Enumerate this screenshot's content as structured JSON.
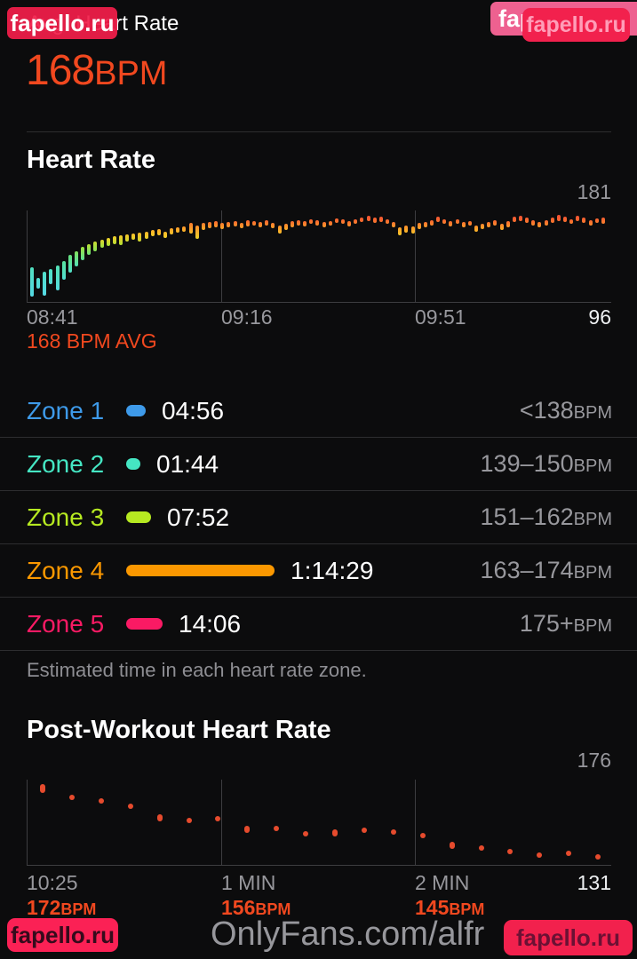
{
  "accent_color": "#f1481f",
  "header": {
    "title": "Avg. Heart Rate",
    "value": "168",
    "unit": "BPM"
  },
  "heart_rate": {
    "section_title": "Heart Rate",
    "y_max": "181",
    "y_min": "96",
    "x_ticks": [
      "08:41",
      "09:16",
      "09:51"
    ],
    "avg_caption": "168 BPM AVG"
  },
  "zones": {
    "rows": [
      {
        "name": "Zone 1",
        "color": "#3e9ae9",
        "duration": "04:56",
        "seconds": 296,
        "range": "<138",
        "unit": "BPM"
      },
      {
        "name": "Zone 2",
        "color": "#45e6c3",
        "duration": "01:44",
        "seconds": 104,
        "range": "139–150",
        "unit": "BPM"
      },
      {
        "name": "Zone 3",
        "color": "#b6e921",
        "duration": "07:52",
        "seconds": 472,
        "range": "151–162",
        "unit": "BPM"
      },
      {
        "name": "Zone 4",
        "color": "#fb9800",
        "duration": "1:14:29",
        "seconds": 4469,
        "range": "163–174",
        "unit": "BPM"
      },
      {
        "name": "Zone 5",
        "color": "#fa1a64",
        "duration": "14:06",
        "seconds": 846,
        "range": "175+",
        "unit": "BPM"
      }
    ],
    "footnote": "Estimated time in each heart rate zone."
  },
  "post_workout": {
    "section_title": "Post-Workout Heart Rate",
    "y_max": "176",
    "y_min": "131",
    "x_ticks": [
      "10:25",
      "1 MIN",
      "2 MIN"
    ],
    "tick_values": [
      {
        "value": "172",
        "unit": "BPM"
      },
      {
        "value": "156",
        "unit": "BPM"
      },
      {
        "value": "145",
        "unit": "BPM"
      }
    ]
  },
  "watermarks": {
    "top_left": "fapello.ru",
    "top_right_back": "fapello.ru",
    "top_right_front": "fapello.ru",
    "bottom_left": "fapello.ru",
    "bottom_right": "fapello.ru",
    "onlyfans": "OnlyFans.com/alfr"
  },
  "chart_data": [
    {
      "type": "bar",
      "title": "Heart Rate",
      "ylabel": "BPM",
      "ylim": [
        94,
        183
      ],
      "y_max_label": 181,
      "y_min_label": 96,
      "x_ticks": [
        "08:41",
        "09:16",
        "09:51"
      ],
      "avg_bpm": 168,
      "bars_are_ranges": true,
      "bars": [
        [
          99,
          127
        ],
        [
          107,
          117
        ],
        [
          100,
          123
        ],
        [
          111,
          126
        ],
        [
          105,
          129
        ],
        [
          115,
          133
        ],
        [
          122,
          139
        ],
        [
          128,
          143
        ],
        [
          134,
          147
        ],
        [
          139,
          150
        ],
        [
          143,
          152
        ],
        [
          146,
          154
        ],
        [
          148,
          156
        ],
        [
          150,
          157
        ],
        [
          149,
          158
        ],
        [
          152,
          159
        ],
        [
          154,
          160
        ],
        [
          152,
          161
        ],
        [
          155,
          162
        ],
        [
          157,
          163
        ],
        [
          158,
          164
        ],
        [
          156,
          162
        ],
        [
          159,
          165
        ],
        [
          161,
          166
        ],
        [
          162,
          167
        ],
        [
          160,
          170
        ],
        [
          155,
          168
        ],
        [
          163,
          170
        ],
        [
          165,
          171
        ],
        [
          166,
          172
        ],
        [
          164,
          170
        ],
        [
          166,
          171
        ],
        [
          167,
          172
        ],
        [
          165,
          170
        ],
        [
          167,
          173
        ],
        [
          168,
          172
        ],
        [
          166,
          171
        ],
        [
          168,
          173
        ],
        [
          165,
          170
        ],
        [
          160,
          168
        ],
        [
          163,
          169
        ],
        [
          166,
          172
        ],
        [
          168,
          173
        ],
        [
          167,
          172
        ],
        [
          169,
          174
        ],
        [
          168,
          173
        ],
        [
          166,
          171
        ],
        [
          168,
          172
        ],
        [
          170,
          174
        ],
        [
          169,
          173
        ],
        [
          167,
          172
        ],
        [
          169,
          174
        ],
        [
          171,
          175
        ],
        [
          172,
          177
        ],
        [
          170,
          175
        ],
        [
          171,
          176
        ],
        [
          169,
          174
        ],
        [
          166,
          171
        ],
        [
          158,
          166
        ],
        [
          161,
          168
        ],
        [
          160,
          167
        ],
        [
          164,
          170
        ],
        [
          166,
          171
        ],
        [
          168,
          173
        ],
        [
          171,
          176
        ],
        [
          169,
          174
        ],
        [
          167,
          172
        ],
        [
          169,
          173
        ],
        [
          166,
          171
        ],
        [
          168,
          172
        ],
        [
          162,
          168
        ],
        [
          164,
          169
        ],
        [
          166,
          171
        ],
        [
          168,
          173
        ],
        [
          163,
          169
        ],
        [
          166,
          172
        ],
        [
          171,
          176
        ],
        [
          172,
          177
        ],
        [
          170,
          175
        ],
        [
          168,
          173
        ],
        [
          166,
          171
        ],
        [
          168,
          173
        ],
        [
          170,
          175
        ],
        [
          172,
          178
        ],
        [
          171,
          176
        ],
        [
          169,
          174
        ],
        [
          172,
          177
        ],
        [
          170,
          175
        ],
        [
          168,
          173
        ],
        [
          170,
          174
        ],
        [
          169,
          175
        ]
      ]
    },
    {
      "type": "scatter",
      "title": "Post-Workout Heart Rate",
      "ylabel": "BPM",
      "ylim": [
        129,
        178
      ],
      "y_max_label": 176,
      "y_min_label": 131,
      "x_ticks": [
        "10:25",
        "1 MIN",
        "2 MIN"
      ],
      "tick_values_bpm": [
        172,
        156,
        145
      ],
      "color": "#e64b2d",
      "dots": [
        [
          170,
          175
        ],
        [
          166,
          167
        ],
        [
          164,
          165
        ],
        [
          161,
          162
        ],
        [
          154,
          158
        ],
        [
          153,
          154
        ],
        [
          154,
          155
        ],
        [
          147,
          151
        ],
        [
          148,
          149
        ],
        [
          145,
          146
        ],
        [
          145,
          149
        ],
        [
          147,
          148
        ],
        [
          146,
          147
        ],
        [
          144,
          145
        ],
        [
          138,
          142
        ],
        [
          137,
          140
        ],
        [
          135,
          137
        ],
        [
          133,
          134
        ],
        [
          134,
          135
        ],
        [
          132,
          133
        ]
      ]
    }
  ]
}
